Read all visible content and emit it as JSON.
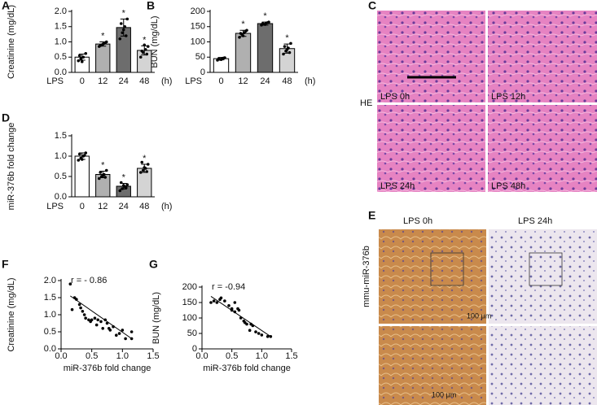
{
  "chart_data": [
    {
      "type": "bar",
      "panel": "A",
      "y_label": "Creatinine (mg/dL)",
      "x_prefix": "LPS",
      "x_suffix": "(h)",
      "categories": [
        "0",
        "12",
        "24",
        "48"
      ],
      "values": [
        0.5,
        0.93,
        1.47,
        0.72
      ],
      "errors": [
        0.1,
        0.07,
        0.28,
        0.15
      ],
      "colors": [
        "#ffffff",
        "#b0b0b0",
        "#6d6d6d",
        "#d4d4d4"
      ],
      "stars": [
        null,
        "*",
        "*",
        "*"
      ],
      "points": [
        [
          0.38,
          0.45,
          0.5,
          0.62,
          0.55,
          0.35
        ],
        [
          0.85,
          0.9,
          0.95,
          1.0,
          0.88,
          0.92,
          0.97
        ],
        [
          1.1,
          1.3,
          1.5,
          1.75,
          1.6,
          1.4,
          1.2
        ],
        [
          0.5,
          0.65,
          0.75,
          0.85,
          0.7,
          0.9,
          0.6
        ]
      ],
      "ylim": [
        0,
        2.0
      ],
      "yticks": [
        {
          "value": 0,
          "label": "0.0"
        },
        {
          "value": 0.5,
          "label": "0.5"
        },
        {
          "value": 1.0,
          "label": "1.0"
        },
        {
          "value": 1.5,
          "label": "1.5"
        },
        {
          "value": 2.0,
          "label": "2.0"
        }
      ]
    },
    {
      "type": "bar",
      "panel": "B",
      "y_label": "BUN (mg/dL)",
      "x_prefix": "LPS",
      "x_suffix": "(h)",
      "categories": [
        "0",
        "12",
        "24",
        "48"
      ],
      "values": [
        45,
        128,
        160,
        78
      ],
      "errors": [
        4,
        10,
        5,
        15
      ],
      "colors": [
        "#ffffff",
        "#b0b0b0",
        "#6d6d6d",
        "#d4d4d4"
      ],
      "stars": [
        null,
        "*",
        "*",
        "*"
      ],
      "points": [
        [
          40,
          43,
          46,
          48,
          44,
          42,
          47
        ],
        [
          115,
          125,
          130,
          138,
          128,
          120,
          135
        ],
        [
          155,
          158,
          162,
          165,
          160,
          157,
          163
        ],
        [
          60,
          70,
          80,
          95,
          85,
          75,
          65
        ]
      ],
      "ylim": [
        0,
        200
      ],
      "yticks": [
        0,
        50,
        100,
        150,
        200
      ]
    },
    {
      "type": "bar",
      "panel": "D",
      "y_label": "miR-376b fold change",
      "x_prefix": "LPS",
      "x_suffix": "(h)",
      "categories": [
        "0",
        "12",
        "24",
        "48"
      ],
      "values": [
        1.0,
        0.55,
        0.26,
        0.7
      ],
      "errors": [
        0.08,
        0.08,
        0.07,
        0.1
      ],
      "colors": [
        "#ffffff",
        "#b0b0b0",
        "#6d6d6d",
        "#d4d4d4"
      ],
      "stars": [
        null,
        "*",
        "*",
        "*"
      ],
      "points": [
        [
          0.9,
          0.95,
          1.0,
          1.08,
          1.05,
          0.92,
          1.02
        ],
        [
          0.45,
          0.5,
          0.55,
          0.65,
          0.6,
          0.52,
          0.48
        ],
        [
          0.15,
          0.2,
          0.25,
          0.3,
          0.35,
          0.28,
          0.22
        ],
        [
          0.6,
          0.65,
          0.7,
          0.8,
          0.85,
          0.72,
          0.62
        ]
      ],
      "ylim": [
        0,
        1.5
      ],
      "yticks": [
        {
          "value": 0,
          "label": "0.0"
        },
        {
          "value": 0.5,
          "label": "0.5"
        },
        {
          "value": 1.0,
          "label": "1.0"
        },
        {
          "value": 1.5,
          "label": "1.5"
        }
      ]
    },
    {
      "type": "scatter",
      "panel": "F",
      "y_label": "Creatinine (mg/dL)",
      "x_label": "miR-376b fold change",
      "annotation": "r = - 0.86",
      "x": [
        0.15,
        0.18,
        0.22,
        0.25,
        0.3,
        0.32,
        0.35,
        0.38,
        0.4,
        0.45,
        0.48,
        0.5,
        0.55,
        0.58,
        0.6,
        0.65,
        0.68,
        0.72,
        0.75,
        0.78,
        0.8,
        0.85,
        0.9,
        0.95,
        1.0,
        1.05,
        1.15,
        1.15
      ],
      "values": [
        1.9,
        1.15,
        1.5,
        1.45,
        1.3,
        1.2,
        1.1,
        1.0,
        0.9,
        0.85,
        0.8,
        0.85,
        0.9,
        0.7,
        0.85,
        0.8,
        0.6,
        0.85,
        0.75,
        0.6,
        0.55,
        0.65,
        0.4,
        0.45,
        0.55,
        0.3,
        0.3,
        0.5
      ],
      "fit": {
        "x": [
          0.15,
          1.15
        ],
        "y": [
          1.55,
          0.3
        ]
      },
      "xlim": [
        0,
        1.5
      ],
      "xticks": [
        {
          "value": 0,
          "label": "0.0"
        },
        {
          "value": 0.5,
          "label": "0.5"
        },
        {
          "value": 1.0,
          "label": "1.0"
        },
        {
          "value": 1.5,
          "label": "1.5"
        }
      ],
      "ylim": [
        0,
        2.0
      ],
      "yticks": [
        {
          "value": 0,
          "label": "0.0"
        },
        {
          "value": 0.5,
          "label": "0.5"
        },
        {
          "value": 1.0,
          "label": "1.0"
        },
        {
          "value": 1.5,
          "label": "1.5"
        },
        {
          "value": 2.0,
          "label": "2.0"
        }
      ]
    },
    {
      "type": "scatter",
      "panel": "G",
      "y_label": "BUN (mg/dL)",
      "x_label": "miR-376b fold change",
      "annotation": "r = -0.94",
      "x": [
        0.15,
        0.2,
        0.25,
        0.3,
        0.32,
        0.38,
        0.45,
        0.5,
        0.5,
        0.55,
        0.55,
        0.6,
        0.62,
        0.65,
        0.7,
        0.72,
        0.75,
        0.8,
        0.82,
        0.85,
        0.9,
        0.95,
        1.0,
        1.1,
        1.15
      ],
      "values": [
        150,
        155,
        150,
        160,
        165,
        155,
        140,
        130,
        125,
        120,
        150,
        130,
        125,
        100,
        90,
        85,
        80,
        60,
        80,
        75,
        55,
        50,
        45,
        40,
        40
      ],
      "fit": {
        "x": [
          0.15,
          1.15
        ],
        "y": [
          170,
          40
        ]
      },
      "xlim": [
        0,
        1.5
      ],
      "xticks": [
        {
          "value": 0,
          "label": "0.0"
        },
        {
          "value": 0.5,
          "label": "0.5"
        },
        {
          "value": 1.0,
          "label": "1.0"
        },
        {
          "value": 1.5,
          "label": "1.5"
        }
      ],
      "ylim": [
        0,
        200
      ],
      "yticks": [
        0,
        50,
        100,
        150,
        200
      ]
    }
  ],
  "images": {
    "C": {
      "panel": "C",
      "side_label": "HE",
      "tiles": [
        "LPS 0h",
        "LPS 12h",
        "LPS 24h",
        "LPS 48h"
      ]
    },
    "E": {
      "panel": "E",
      "side_label": "mmu-miR-376b",
      "columns": [
        "LPS 0h",
        "LPS 24h"
      ],
      "scale_bars": [
        "100 μm",
        "100 μm"
      ]
    }
  }
}
